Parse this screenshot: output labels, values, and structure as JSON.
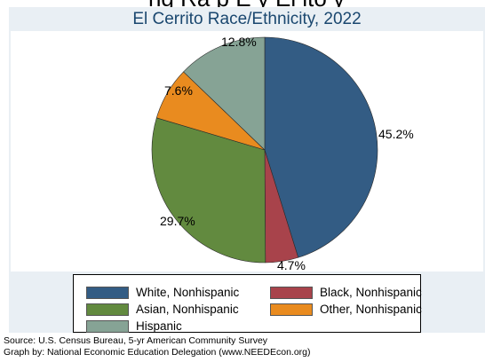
{
  "page": {
    "cropped_caption": "ng Ra    p    E      y   El   ito      y"
  },
  "chart_data": {
    "type": "pie",
    "title": "El Cerrito Race/Ethnicity, 2022",
    "slices": [
      {
        "name": "White, Nonhispanic",
        "value": 45.2,
        "label": "45.2%",
        "color": "#335c84"
      },
      {
        "name": "Black, Nonhispanic",
        "value": 4.7,
        "label": "4.7%",
        "color": "#a8434b"
      },
      {
        "name": "Asian, Nonhispanic",
        "value": 29.7,
        "label": "29.7%",
        "color": "#628a3f"
      },
      {
        "name": "Other, Nonhispanic",
        "value": 7.6,
        "label": "7.6%",
        "color": "#e98b1f"
      },
      {
        "name": "Hispanic",
        "value": 12.8,
        "label": "12.8%",
        "color": "#86a395"
      }
    ],
    "legend_placement": "bottom",
    "start": "12 o'clock",
    "direction": "clockwise"
  },
  "source": {
    "line1": "Source:  U.S. Census Bureau, 5-yr American Community Survey",
    "line2": "Graph by: National Economic Education Delegation (www.NEEDEcon.org)"
  }
}
